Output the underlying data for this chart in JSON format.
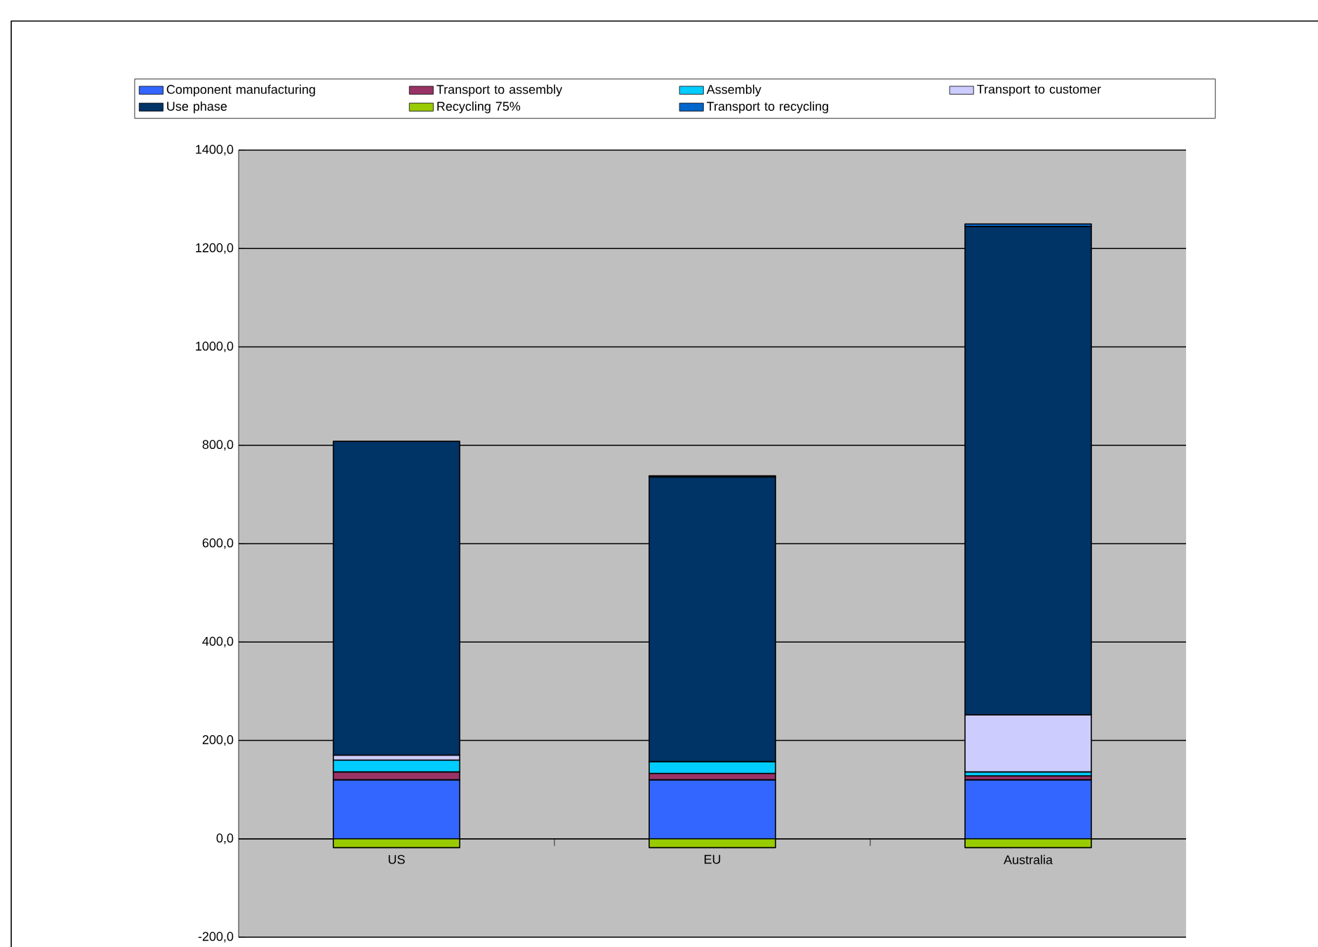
{
  "chart_data": {
    "type": "bar",
    "stacked": true,
    "categories": [
      "US",
      "EU",
      "Australia"
    ],
    "series": [
      {
        "name": "Component manufacturing",
        "color": "#3366ff",
        "values": [
          120,
          120,
          120
        ]
      },
      {
        "name": "Transport to assembly",
        "color": "#993366",
        "values": [
          16,
          13,
          8
        ]
      },
      {
        "name": "Assembly",
        "color": "#00ccff",
        "values": [
          24,
          24,
          8
        ]
      },
      {
        "name": "Transport to customer",
        "color": "#ccccff",
        "values": [
          10,
          null,
          116
        ]
      },
      {
        "name": "Use phase",
        "color": "#003366",
        "values": [
          638,
          579,
          993
        ]
      },
      {
        "name": "Recycling 75%",
        "color": "#99cc00",
        "values": [
          -18,
          -18,
          -18
        ]
      },
      {
        "name": "Transport to recycling",
        "color": "#0066cc",
        "values": [
          null,
          2,
          5
        ]
      }
    ],
    "ylim": [
      -200,
      1400
    ],
    "yticks": [
      {
        "value": -200,
        "label": "-200,0"
      },
      {
        "value": 0,
        "label": "0,0"
      },
      {
        "value": 200,
        "label": "200,0"
      },
      {
        "value": 400,
        "label": "400,0"
      },
      {
        "value": 600,
        "label": "600,0"
      },
      {
        "value": 800,
        "label": "800,0"
      },
      {
        "value": 1000,
        "label": "1000,0"
      },
      {
        "value": 1200,
        "label": "1200,0"
      },
      {
        "value": 1400,
        "label": "1400,0"
      }
    ],
    "grid": "y",
    "legend": "top"
  }
}
